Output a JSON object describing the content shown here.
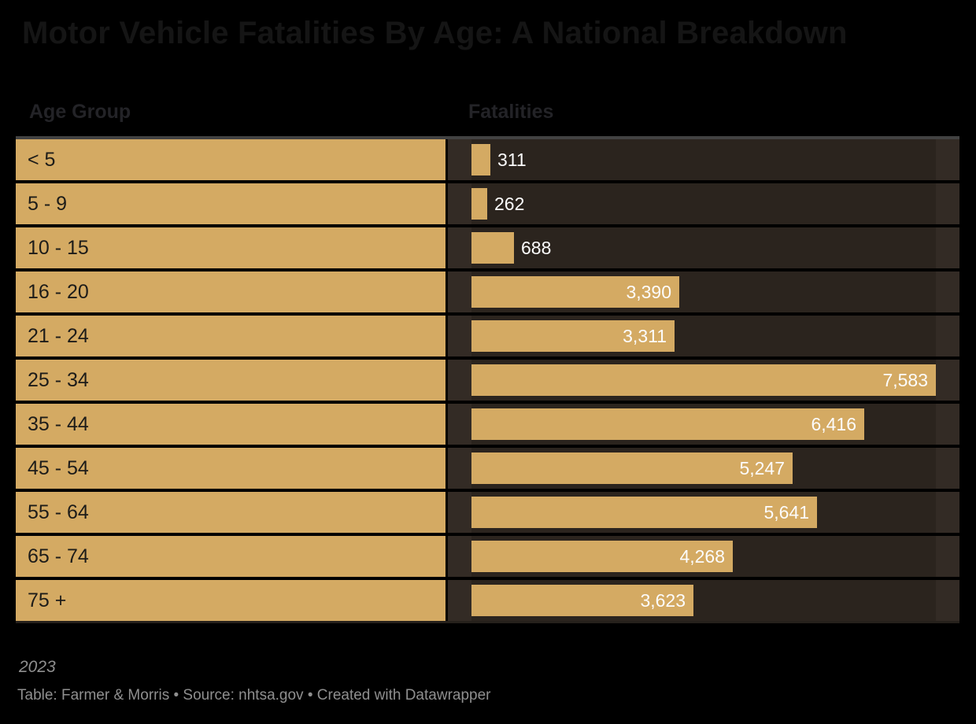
{
  "title": "Motor Vehicle Fatalities By Age: A National Breakdown",
  "columns": {
    "age_group": "Age Group",
    "fatalities": "Fatalities"
  },
  "chart_data": {
    "type": "bar",
    "orientation": "horizontal",
    "title": "Motor Vehicle Fatalities By Age: A National Breakdown",
    "categories": [
      "< 5",
      "5 - 9",
      "10 - 15",
      "16 - 20",
      "21 - 24",
      "25 - 34",
      "35 - 44",
      "45 - 54",
      "55 - 64",
      "65 - 74",
      "75 +"
    ],
    "values": [
      311,
      262,
      688,
      3390,
      3311,
      7583,
      6416,
      5247,
      5641,
      4268,
      3623
    ],
    "value_labels": [
      "311",
      "262",
      "688",
      "3,390",
      "3,311",
      "7,583",
      "6,416",
      "5,247",
      "5,641",
      "4,268",
      "3,623"
    ],
    "xlabel": "Fatalities",
    "ylabel": "Age Group",
    "xlim": [
      0,
      7583
    ],
    "grid": false,
    "legend": false
  },
  "footer": {
    "note": "2023",
    "byline": "Table: Farmer & Morris • Source: nhtsa.gov • Created with Datawrapper"
  },
  "colors": {
    "background": "#000000",
    "bar_fill": "#d4aa63",
    "label_cell_fill": "#d4aa63",
    "bar_cell_background": "#332b25",
    "bar_track_background": "#2b241e",
    "title_text": "#151515",
    "header_text": "#232327",
    "row_label_text": "#1d1c19",
    "value_label_text": "#fcfcfc",
    "footer_text": "#8f8f8f",
    "table_top_border": "#424242"
  }
}
